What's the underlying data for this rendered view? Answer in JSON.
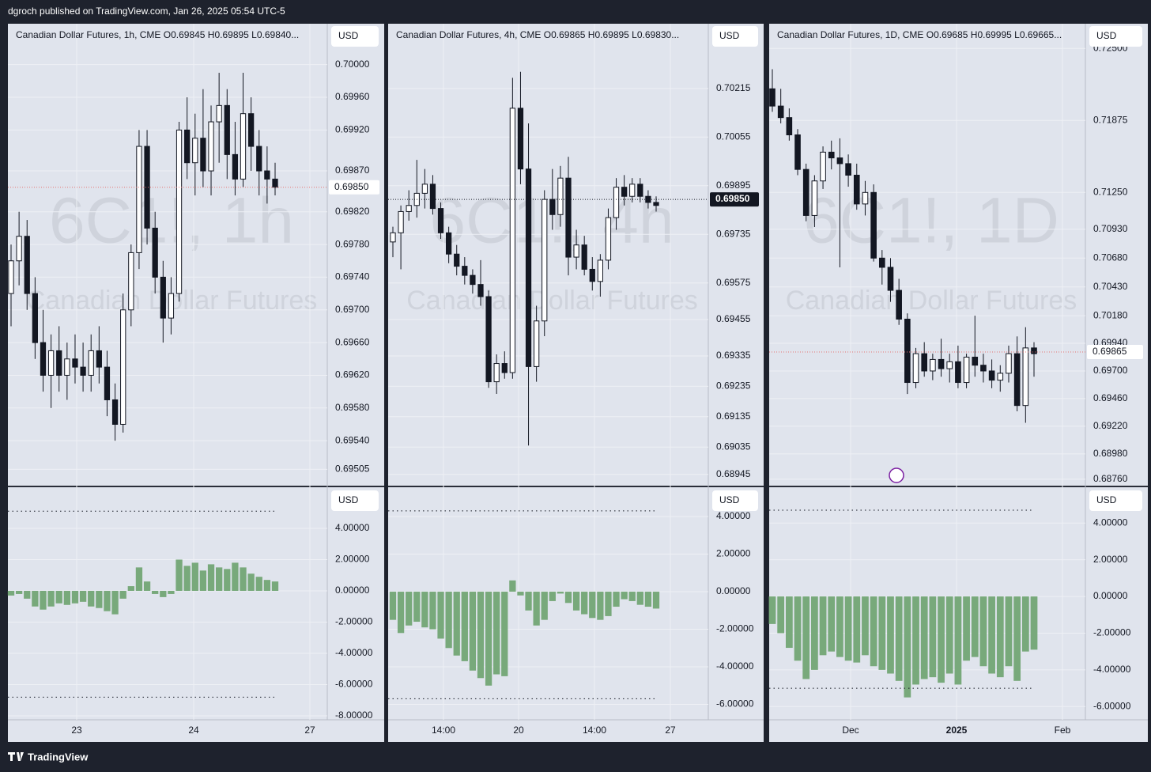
{
  "header": {
    "text": "dgroch published on TradingView.com, Jan 26, 2025 05:54 UTC-5"
  },
  "footer": {
    "brand": "TradingView"
  },
  "panels": [
    {
      "title": "Canadian Dollar Futures, 1h, CME  O0.69845  H0.69895  L0.69840...",
      "currency": "USD",
      "watermark": "6C1!, 1h",
      "watermark_sub": "Canadian Dollar Futures",
      "ylim": [
        0.69485,
        0.7005
      ],
      "yticks": [
        {
          "value": 0.7,
          "label": "0.70000"
        },
        {
          "value": 0.6996,
          "label": "0.69960"
        },
        {
          "value": 0.6992,
          "label": "0.69920"
        },
        {
          "value": 0.6987,
          "label": "0.69870"
        },
        {
          "value": 0.6982,
          "label": "0.69820"
        },
        {
          "value": 0.6978,
          "label": "0.69780"
        },
        {
          "value": 0.6974,
          "label": "0.69740"
        },
        {
          "value": 0.697,
          "label": "0.69700"
        },
        {
          "value": 0.6966,
          "label": "0.69660"
        },
        {
          "value": 0.6962,
          "label": "0.69620"
        },
        {
          "value": 0.6958,
          "label": "0.69580"
        },
        {
          "value": 0.6954,
          "label": "0.69540"
        },
        {
          "value": 0.69505,
          "label": "0.69505"
        }
      ],
      "last_price": {
        "value": 0.6985,
        "label": "0.69850"
      },
      "candles": [
        [
          0.6972,
          0.6978,
          0.6968,
          0.6976
        ],
        [
          0.6976,
          0.6982,
          0.6973,
          0.6979
        ],
        [
          0.6979,
          0.6981,
          0.697,
          0.6972
        ],
        [
          0.6972,
          0.6974,
          0.6964,
          0.6966
        ],
        [
          0.6966,
          0.697,
          0.696,
          0.6962
        ],
        [
          0.6962,
          0.6967,
          0.6958,
          0.6965
        ],
        [
          0.6965,
          0.6968,
          0.696,
          0.6962
        ],
        [
          0.6962,
          0.6966,
          0.6959,
          0.6964
        ],
        [
          0.6964,
          0.6967,
          0.6961,
          0.6963
        ],
        [
          0.6963,
          0.6966,
          0.696,
          0.6962
        ],
        [
          0.6962,
          0.6967,
          0.696,
          0.6965
        ],
        [
          0.6965,
          0.6968,
          0.6961,
          0.6963
        ],
        [
          0.6963,
          0.6965,
          0.6957,
          0.6959
        ],
        [
          0.6959,
          0.6961,
          0.6954,
          0.6956
        ],
        [
          0.6956,
          0.6972,
          0.6955,
          0.697
        ],
        [
          0.697,
          0.6978,
          0.6968,
          0.6977
        ],
        [
          0.6977,
          0.6992,
          0.6975,
          0.699
        ],
        [
          0.699,
          0.6992,
          0.6978,
          0.698
        ],
        [
          0.698,
          0.6982,
          0.6972,
          0.6974
        ],
        [
          0.6974,
          0.6976,
          0.6966,
          0.6969
        ],
        [
          0.6969,
          0.6974,
          0.6967,
          0.6972
        ],
        [
          0.6972,
          0.6993,
          0.6971,
          0.6992
        ],
        [
          0.6992,
          0.6996,
          0.6986,
          0.6988
        ],
        [
          0.6988,
          0.6994,
          0.6984,
          0.6991
        ],
        [
          0.6991,
          0.6997,
          0.6985,
          0.6987
        ],
        [
          0.6987,
          0.6995,
          0.6984,
          0.6993
        ],
        [
          0.6993,
          0.6999,
          0.6988,
          0.6995
        ],
        [
          0.6995,
          0.6997,
          0.6986,
          0.6989
        ],
        [
          0.6989,
          0.6993,
          0.6984,
          0.6986
        ],
        [
          0.6986,
          0.6999,
          0.6985,
          0.6994
        ],
        [
          0.6994,
          0.6996,
          0.6987,
          0.699
        ],
        [
          0.699,
          0.6992,
          0.6984,
          0.6987
        ],
        [
          0.6987,
          0.699,
          0.6983,
          0.6986
        ],
        [
          0.6986,
          0.6988,
          0.6984,
          0.6985
        ]
      ],
      "ind_ylim": [
        -8.25,
        6.63
      ],
      "ind_yticks": [
        {
          "value": 4,
          "label": "4.00000"
        },
        {
          "value": 2,
          "label": "2.00000"
        },
        {
          "value": 0,
          "label": "0.00000"
        },
        {
          "value": -2,
          "label": "-2.00000"
        },
        {
          "value": -4,
          "label": "-4.00000"
        },
        {
          "value": -6,
          "label": "-6.00000"
        },
        {
          "value": -8,
          "label": "-8.00000"
        }
      ],
      "ind_levels": [
        5.1,
        -6.8
      ],
      "hist": [
        -0.3,
        -0.2,
        -0.5,
        -1.0,
        -1.2,
        -1.0,
        -0.8,
        -0.9,
        -0.8,
        -0.7,
        -1.0,
        -1.1,
        -1.3,
        -1.5,
        -0.5,
        0.3,
        1.5,
        0.6,
        -0.2,
        -0.4,
        -0.2,
        2.0,
        1.6,
        1.8,
        1.3,
        1.7,
        1.5,
        1.4,
        1.8,
        1.5,
        1.1,
        0.9,
        0.7,
        0.6
      ],
      "xticks": [
        "23",
        "24",
        "27"
      ]
    },
    {
      "title": "Canadian Dollar Futures, 4h, CME  O0.69865  H0.69895  L0.69830...",
      "currency": "USD",
      "watermark": "6C1!, 4h",
      "watermark_sub": "Canadian Dollar Futures",
      "ylim": [
        0.68908,
        0.70428
      ],
      "yticks": [
        {
          "value": 0.70215,
          "label": "0.70215"
        },
        {
          "value": 0.70055,
          "label": "0.70055"
        },
        {
          "value": 0.69895,
          "label": "0.69895"
        },
        {
          "value": 0.69735,
          "label": "0.69735"
        },
        {
          "value": 0.69575,
          "label": "0.69575"
        },
        {
          "value": 0.69455,
          "label": "0.69455"
        },
        {
          "value": 0.69335,
          "label": "0.69335"
        },
        {
          "value": 0.69235,
          "label": "0.69235"
        },
        {
          "value": 0.69135,
          "label": "0.69135"
        },
        {
          "value": 0.69035,
          "label": "0.69035"
        },
        {
          "value": 0.68945,
          "label": "0.68945"
        }
      ],
      "last_price": {
        "value": 0.6985,
        "label": "0.69850"
      },
      "candles": [
        [
          0.6971,
          0.6976,
          0.6966,
          0.6974
        ],
        [
          0.6974,
          0.6983,
          0.6962,
          0.6981
        ],
        [
          0.6981,
          0.6988,
          0.6978,
          0.6983
        ],
        [
          0.6983,
          0.6998,
          0.6979,
          0.6987
        ],
        [
          0.6987,
          0.6995,
          0.6982,
          0.699
        ],
        [
          0.699,
          0.6993,
          0.698,
          0.6982
        ],
        [
          0.6982,
          0.6984,
          0.6972,
          0.6974
        ],
        [
          0.6974,
          0.6976,
          0.6964,
          0.6967
        ],
        [
          0.6967,
          0.697,
          0.696,
          0.6963
        ],
        [
          0.6963,
          0.6966,
          0.6957,
          0.696
        ],
        [
          0.696,
          0.6962,
          0.6954,
          0.6957
        ],
        [
          0.6957,
          0.6965,
          0.695,
          0.6953
        ],
        [
          0.6953,
          0.6955,
          0.6923,
          0.6925
        ],
        [
          0.6925,
          0.6934,
          0.6921,
          0.6931
        ],
        [
          0.6931,
          0.6935,
          0.6926,
          0.6928
        ],
        [
          0.6928,
          0.7025,
          0.6926,
          0.7015
        ],
        [
          0.7015,
          0.7027,
          0.699,
          0.6995
        ],
        [
          0.6995,
          0.701,
          0.6904,
          0.693
        ],
        [
          0.693,
          0.695,
          0.6925,
          0.6945
        ],
        [
          0.6945,
          0.6988,
          0.694,
          0.6985
        ],
        [
          0.6985,
          0.6995,
          0.6975,
          0.698
        ],
        [
          0.698,
          0.6996,
          0.6976,
          0.6992
        ],
        [
          0.6992,
          0.6999,
          0.696,
          0.6966
        ],
        [
          0.6966,
          0.6975,
          0.6962,
          0.697
        ],
        [
          0.697,
          0.6973,
          0.696,
          0.6962
        ],
        [
          0.6962,
          0.6966,
          0.6955,
          0.6958
        ],
        [
          0.6958,
          0.6967,
          0.6953,
          0.6965
        ],
        [
          0.6965,
          0.6982,
          0.6962,
          0.6979
        ],
        [
          0.6979,
          0.6992,
          0.6975,
          0.6989
        ],
        [
          0.6989,
          0.6993,
          0.6983,
          0.6986
        ],
        [
          0.6986,
          0.6992,
          0.6984,
          0.699
        ],
        [
          0.699,
          0.6992,
          0.6984,
          0.6986
        ],
        [
          0.6986,
          0.6988,
          0.6982,
          0.6984
        ],
        [
          0.6984,
          0.6986,
          0.6981,
          0.6983
        ]
      ],
      "ind_ylim": [
        -6.82,
        5.56
      ],
      "ind_yticks": [
        {
          "value": 4,
          "label": "4.00000"
        },
        {
          "value": 2,
          "label": "2.00000"
        },
        {
          "value": 0,
          "label": "0.00000"
        },
        {
          "value": -2,
          "label": "-2.00000"
        },
        {
          "value": -4,
          "label": "-4.00000"
        },
        {
          "value": -6,
          "label": "-6.00000"
        }
      ],
      "ind_levels": [
        4.3,
        -5.7
      ],
      "hist": [
        -1.5,
        -2.2,
        -1.8,
        -1.6,
        -1.9,
        -2.0,
        -2.5,
        -3.0,
        -3.4,
        -3.7,
        -4.2,
        -4.6,
        -5.0,
        -4.4,
        -4.5,
        0.6,
        -0.2,
        -1.0,
        -1.8,
        -1.5,
        -0.5,
        -0.1,
        -0.6,
        -1.0,
        -1.2,
        -1.4,
        -1.5,
        -1.3,
        -0.8,
        -0.4,
        -0.5,
        -0.7,
        -0.8,
        -0.9
      ],
      "xticks": [
        "14:00",
        "20",
        "14:00",
        "27"
      ]
    },
    {
      "title": "Canadian Dollar Futures, 1D, CME  O0.69685  H0.69995  L0.69665...",
      "currency": "USD",
      "watermark": "6C1!, 1D",
      "watermark_sub": "Canadian Dollar Futures",
      "ylim": [
        0.68704,
        0.72715
      ],
      "yticks": [
        {
          "value": 0.725,
          "label": "0.72500"
        },
        {
          "value": 0.71875,
          "label": "0.71875"
        },
        {
          "value": 0.7125,
          "label": "0.71250"
        },
        {
          "value": 0.7093,
          "label": "0.70930"
        },
        {
          "value": 0.7068,
          "label": "0.70680"
        },
        {
          "value": 0.7043,
          "label": "0.70430"
        },
        {
          "value": 0.7018,
          "label": "0.70180"
        },
        {
          "value": 0.6994,
          "label": "0.69940"
        },
        {
          "value": 0.697,
          "label": "0.69700"
        },
        {
          "value": 0.6946,
          "label": "0.69460"
        },
        {
          "value": 0.6922,
          "label": "0.69220"
        },
        {
          "value": 0.6898,
          "label": "0.68980"
        },
        {
          "value": 0.6876,
          "label": "0.68760"
        }
      ],
      "last_price": {
        "value": 0.69865,
        "label": "0.69865"
      },
      "candles": [
        [
          0.7215,
          0.7232,
          0.7195,
          0.72
        ],
        [
          0.72,
          0.7215,
          0.7185,
          0.719
        ],
        [
          0.719,
          0.7198,
          0.717,
          0.7175
        ],
        [
          0.7175,
          0.718,
          0.714,
          0.7145
        ],
        [
          0.7145,
          0.715,
          0.71,
          0.7105
        ],
        [
          0.7105,
          0.714,
          0.7095,
          0.7135
        ],
        [
          0.7135,
          0.7165,
          0.7128,
          0.716
        ],
        [
          0.716,
          0.717,
          0.7145,
          0.7155
        ],
        [
          0.7155,
          0.7172,
          0.706,
          0.715
        ],
        [
          0.715,
          0.7158,
          0.713,
          0.714
        ],
        [
          0.714,
          0.715,
          0.711,
          0.7115
        ],
        [
          0.7115,
          0.7135,
          0.7105,
          0.7125
        ],
        [
          0.7125,
          0.7132,
          0.7065,
          0.7068
        ],
        [
          0.7068,
          0.7075,
          0.7045,
          0.706
        ],
        [
          0.706,
          0.7068,
          0.703,
          0.704
        ],
        [
          0.704,
          0.705,
          0.701,
          0.7015
        ],
        [
          0.7015,
          0.702,
          0.695,
          0.696
        ],
        [
          0.696,
          0.699,
          0.6955,
          0.6985
        ],
        [
          0.6985,
          0.6995,
          0.6965,
          0.697
        ],
        [
          0.697,
          0.6985,
          0.6962,
          0.698
        ],
        [
          0.698,
          0.6998,
          0.6965,
          0.6972
        ],
        [
          0.6972,
          0.6985,
          0.696,
          0.6978
        ],
        [
          0.6978,
          0.6992,
          0.6955,
          0.696
        ],
        [
          0.696,
          0.6985,
          0.6955,
          0.6982
        ],
        [
          0.6982,
          0.7018,
          0.6965,
          0.6975
        ],
        [
          0.6975,
          0.6985,
          0.696,
          0.697
        ],
        [
          0.697,
          0.698,
          0.6955,
          0.6962
        ],
        [
          0.6962,
          0.6975,
          0.6952,
          0.6968
        ],
        [
          0.6968,
          0.6992,
          0.696,
          0.6985
        ],
        [
          0.6985,
          0.7,
          0.6935,
          0.694
        ],
        [
          0.694,
          0.7008,
          0.6925,
          0.699
        ],
        [
          0.699,
          0.6995,
          0.6965,
          0.6985
        ]
      ],
      "ind_ylim": [
        -6.72,
        5.95
      ],
      "ind_yticks": [
        {
          "value": 4,
          "label": "4.00000"
        },
        {
          "value": 2,
          "label": "2.00000"
        },
        {
          "value": 0,
          "label": "0.00000"
        },
        {
          "value": -2,
          "label": "-2.00000"
        },
        {
          "value": -4,
          "label": "-4.00000"
        },
        {
          "value": -6,
          "label": "-6.00000"
        }
      ],
      "ind_levels": [
        4.7,
        -5.0
      ],
      "hist": [
        -1.5,
        -2.0,
        -2.8,
        -3.5,
        -4.5,
        -4.0,
        -3.2,
        -3.0,
        -3.3,
        -3.5,
        -3.6,
        -3.2,
        -3.8,
        -4.0,
        -4.2,
        -4.6,
        -5.5,
        -4.8,
        -4.5,
        -4.4,
        -4.7,
        -4.2,
        -4.8,
        -3.5,
        -3.3,
        -3.8,
        -4.2,
        -4.4,
        -3.8,
        -4.6,
        -3.0,
        -2.9
      ],
      "xticks": [
        "Dec",
        "2025",
        "Feb"
      ]
    }
  ]
}
